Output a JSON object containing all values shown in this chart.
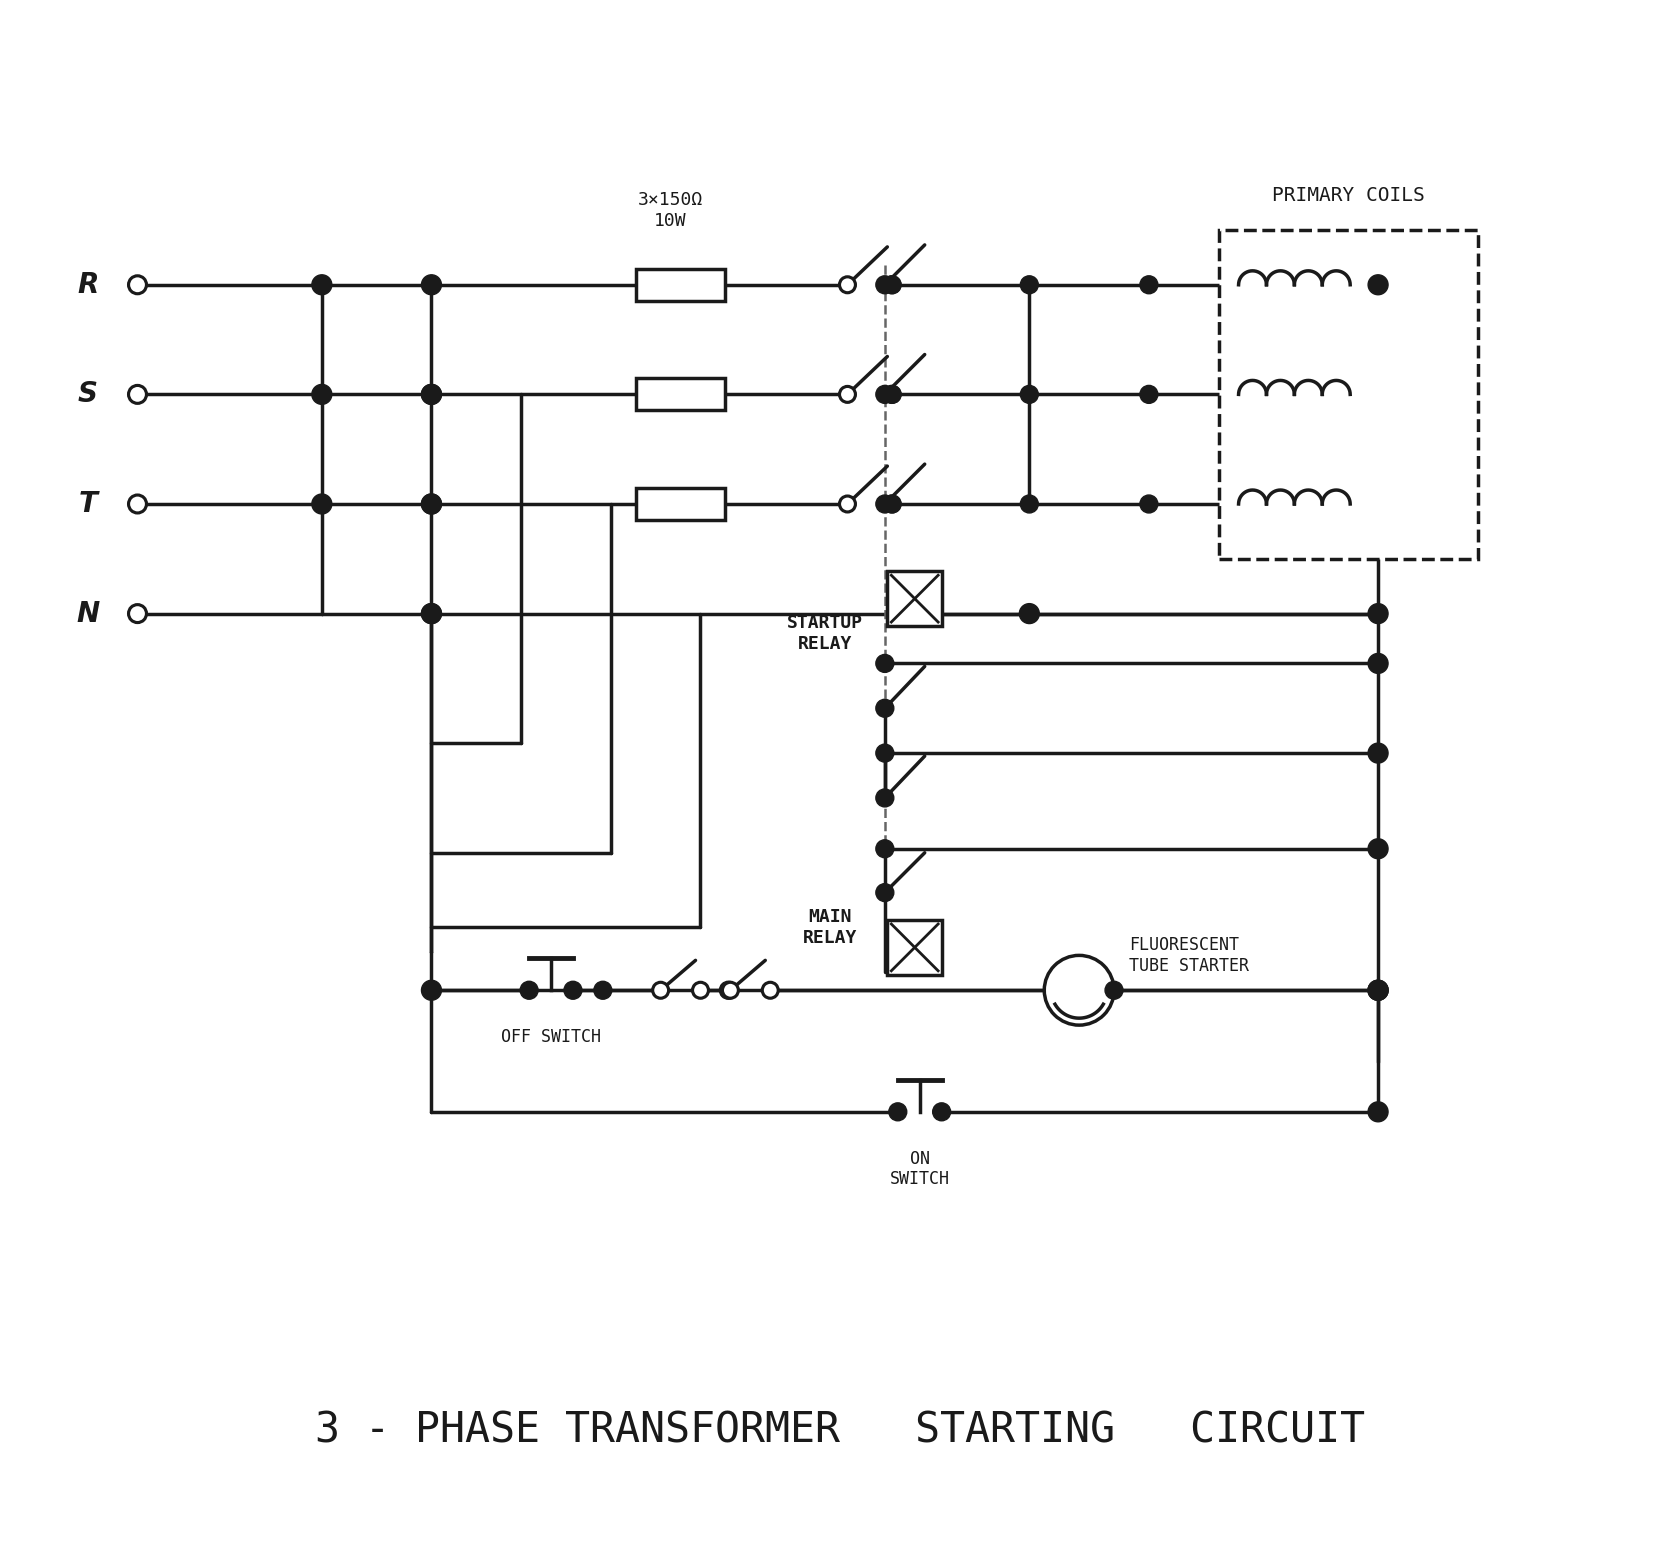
{
  "title": "3 - PHASE TRANSFORMER   STARTING   CIRCUIT",
  "primary_coils_label": "PRIMARY COILS",
  "resistor_label": "3×150Ω\n10W",
  "startup_relay_label": "STARTUP\nRELAY",
  "main_relay_label": "MAIN\nRELAY",
  "fluorescent_label": "FLUORESCENT\nTUBE STARTER",
  "off_switch_label": "OFF SWITCH",
  "on_switch_label": "ON\nSWITCH",
  "phase_labels": [
    "R",
    "S",
    "T",
    "N"
  ],
  "bg_color": "#ffffff",
  "line_color": "#1a1a1a",
  "line_width": 2.5,
  "title_fontsize": 30,
  "label_fontsize": 13
}
